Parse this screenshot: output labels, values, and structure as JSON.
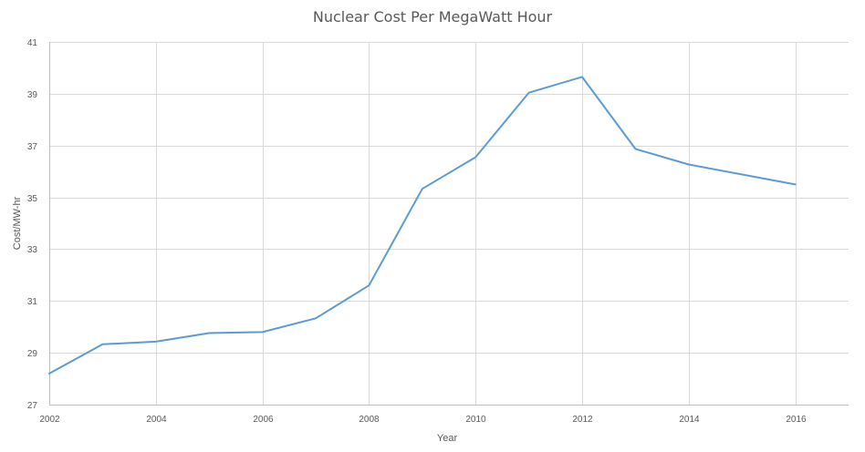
{
  "chart_data": {
    "type": "line",
    "title": "Nuclear Cost Per MegaWatt Hour",
    "xlabel": "Year",
    "ylabel": "Cost/MW-hr",
    "xlim": [
      2002,
      2017
    ],
    "ylim": [
      27,
      41
    ],
    "x_ticks": [
      2002,
      2004,
      2006,
      2008,
      2010,
      2012,
      2014,
      2016
    ],
    "y_ticks": [
      27,
      29,
      31,
      33,
      35,
      37,
      39,
      41
    ],
    "x_tick_labels": [
      "2002",
      "2004",
      "2006",
      "2008",
      "2010",
      "2012",
      "2014",
      "2016"
    ],
    "y_tick_labels": [
      "27",
      "29",
      "31",
      "33",
      "35",
      "37",
      "39",
      "41"
    ],
    "grid": true,
    "legend": "none",
    "series": [
      {
        "name": "Nuclear Cost Per MegaWatt Hour",
        "color": "#5b9bd5",
        "x": [
          2002,
          2003,
          2004,
          2005,
          2006,
          2007,
          2008,
          2009,
          2010,
          2011,
          2012,
          2013,
          2014,
          2016
        ],
        "values": [
          28.2,
          29.33,
          29.43,
          29.76,
          29.8,
          30.33,
          31.6,
          35.33,
          36.55,
          39.04,
          39.65,
          36.87,
          36.27,
          35.5
        ]
      }
    ]
  }
}
